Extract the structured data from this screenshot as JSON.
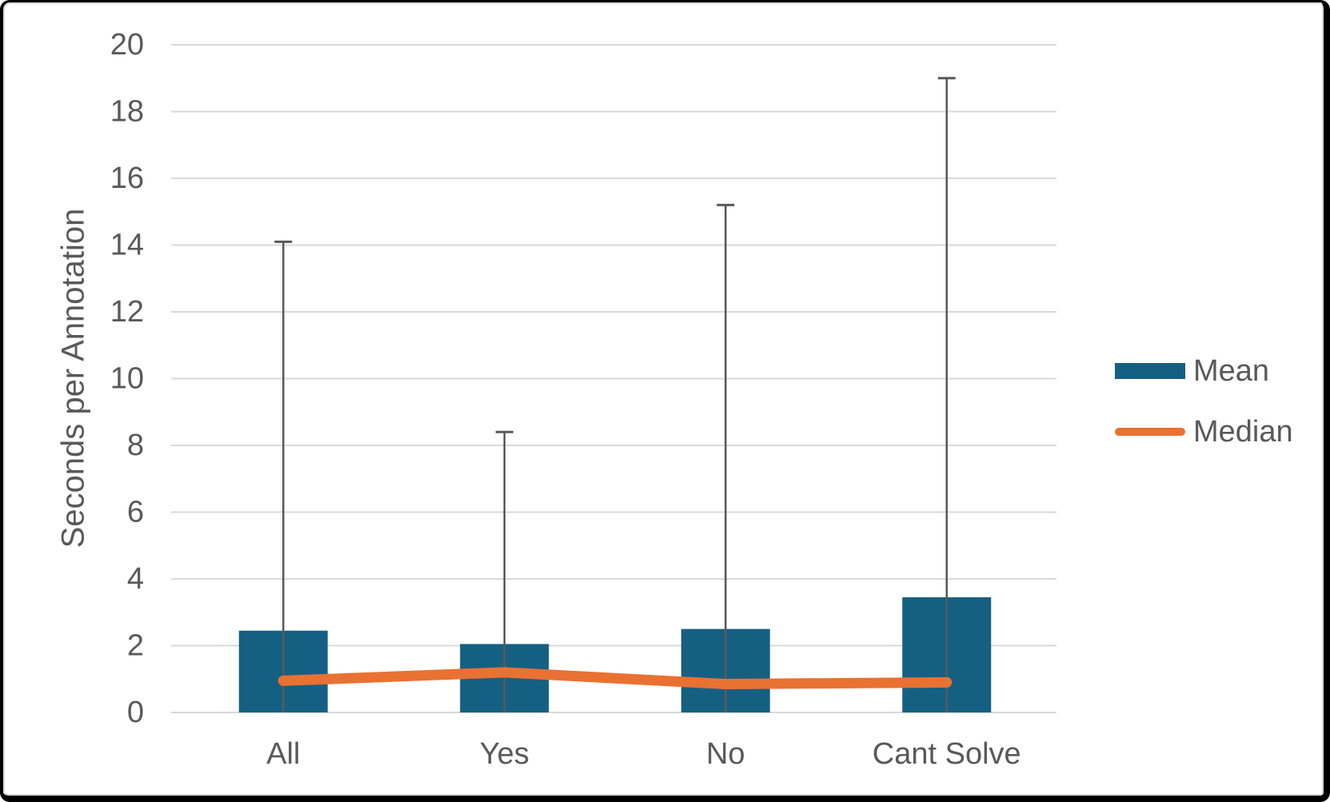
{
  "chart_data": {
    "type": "bar",
    "title": "",
    "categories": [
      "All",
      "Yes",
      "No",
      "Cant Solve"
    ],
    "series": [
      {
        "name": "Mean",
        "kind": "bar",
        "color": "#156082",
        "values": [
          2.45,
          2.05,
          2.5,
          3.45
        ]
      },
      {
        "name": "Median",
        "kind": "line",
        "color": "#E97132",
        "values": [
          0.95,
          1.2,
          0.85,
          0.9
        ]
      }
    ],
    "error_bars_upper": [
      14.1,
      8.4,
      15.2,
      19.0
    ],
    "xlabel": "",
    "ylabel": "Seconds per Annotation",
    "ylim": [
      0,
      20
    ],
    "ytick_step": 2,
    "ytick_labels": [
      "0",
      "2",
      "4",
      "6",
      "8",
      "10",
      "12",
      "14",
      "16",
      "18",
      "20"
    ],
    "grid": true,
    "legend_position": "right-middle",
    "colors": {
      "grid": "#D9D9D9",
      "axis_text": "#595959",
      "error_bar": "#595959",
      "background": "#FFFFFF",
      "frame_border": "#000000"
    }
  },
  "legend": {
    "items": [
      {
        "label": "Mean",
        "swatch": "bar",
        "color": "#156082"
      },
      {
        "label": "Median",
        "swatch": "line",
        "color": "#E97132"
      }
    ]
  }
}
